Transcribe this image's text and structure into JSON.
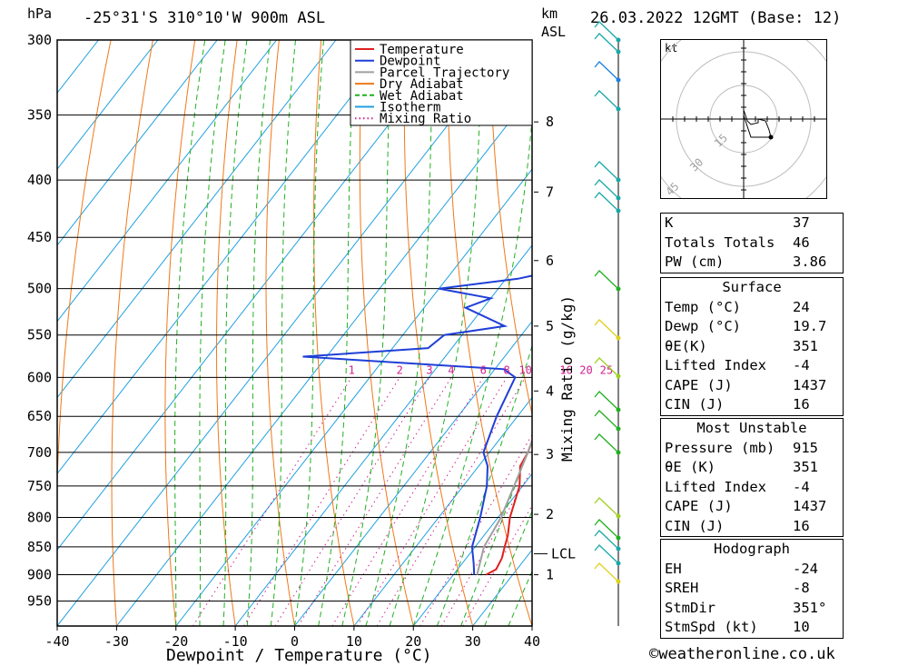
{
  "header": {
    "pressure_unit": "hPa",
    "location": "-25°31'S 310°10'W 900m ASL",
    "height_unit_1": "km",
    "height_unit_2": "ASL",
    "datetime": "26.03.2022 12GMT (Base: 12)"
  },
  "chart_data": {
    "type": "line",
    "xlabel": "Dewpoint / Temperature (°C)",
    "x_ticks": [
      -40,
      -30,
      -20,
      -10,
      0,
      10,
      20,
      30,
      40
    ],
    "y_ticks": [
      300,
      350,
      400,
      450,
      500,
      550,
      600,
      650,
      700,
      750,
      800,
      850,
      900,
      950
    ],
    "xlim": [
      -40,
      40
    ],
    "ylim": [
      1000,
      300
    ],
    "y_scale": "log",
    "legend": {
      "placement": "top-right",
      "entries": [
        {
          "name": "Temperature",
          "color": "#e02020",
          "style": "solid"
        },
        {
          "name": "Dewpoint",
          "color": "#1f3fd8",
          "style": "solid"
        },
        {
          "name": "Parcel Trajectory",
          "color": "#a0a0a0",
          "style": "solid"
        },
        {
          "name": "Dry Adiabat",
          "color": "#f07818",
          "style": "solid"
        },
        {
          "name": "Wet Adiabat",
          "color": "#20b020",
          "style": "dashed"
        },
        {
          "name": "Isotherm",
          "color": "#20a0e0",
          "style": "solid"
        },
        {
          "name": "Mixing Ratio",
          "color": "#d02090",
          "style": "dotted"
        }
      ]
    },
    "mixing_ratio_label": "Mixing Ratio (g/kg)",
    "mixing_ratio_values": [
      "1",
      "2",
      "3",
      "4",
      "6",
      "8",
      "10",
      "16",
      "20",
      "25"
    ],
    "height_ticks_km": [
      "1",
      "2",
      "3",
      "4",
      "5",
      "6",
      "7",
      "8"
    ],
    "lcl_label": "LCL",
    "series": [
      {
        "name": "Temperature",
        "points": [
          [
            900,
            25.5
          ],
          [
            890,
            26.5
          ],
          [
            870,
            26
          ],
          [
            850,
            25
          ],
          [
            830,
            24
          ],
          [
            800,
            22
          ],
          [
            750,
            19.5
          ],
          [
            720,
            17
          ],
          [
            700,
            16.5
          ],
          [
            650,
            14
          ],
          [
            600,
            10.5
          ],
          [
            550,
            8
          ],
          [
            500,
            5.5
          ],
          [
            450,
            2
          ],
          [
            420,
            0.5
          ],
          [
            400,
            -2.5
          ],
          [
            380,
            -5
          ],
          [
            350,
            -8.5
          ],
          [
            300,
            -15
          ]
        ]
      },
      {
        "name": "Dewpoint",
        "points": [
          [
            900,
            23.5
          ],
          [
            880,
            22
          ],
          [
            850,
            19.5
          ],
          [
            800,
            17
          ],
          [
            750,
            14
          ],
          [
            720,
            11.5
          ],
          [
            700,
            9
          ],
          [
            650,
            6.5
          ],
          [
            600,
            4.5
          ],
          [
            590,
            1.5
          ],
          [
            575,
            -34
          ],
          [
            565,
            -14
          ],
          [
            550,
            -13
          ],
          [
            540,
            -4
          ],
          [
            520,
            -13
          ],
          [
            510,
            -10
          ],
          [
            500,
            -20
          ],
          [
            490,
            -8
          ],
          [
            480,
            -1.5
          ],
          [
            450,
            -2
          ],
          [
            440,
            -7
          ],
          [
            430,
            -3
          ],
          [
            410,
            -5
          ],
          [
            410,
            -16
          ],
          [
            395,
            -10
          ],
          [
            385,
            -11
          ],
          [
            375,
            -16
          ],
          [
            370,
            -12
          ],
          [
            360,
            -10
          ],
          [
            340,
            -12
          ],
          [
            320,
            -19
          ],
          [
            300,
            -28
          ]
        ]
      },
      {
        "name": "Parcel Trajectory",
        "points": [
          [
            900,
            24
          ],
          [
            850,
            21.5
          ],
          [
            800,
            20.5
          ],
          [
            700,
            16.5
          ],
          [
            600,
            11
          ],
          [
            500,
            3
          ],
          [
            450,
            -2
          ],
          [
            400,
            -8
          ],
          [
            360,
            -14
          ]
        ]
      }
    ]
  },
  "hodograph": {
    "unit": "kt",
    "ring_labels": [
      "15",
      "30",
      "45"
    ],
    "trace": [
      [
        0,
        5
      ],
      [
        2,
        -1
      ],
      [
        4,
        -3
      ],
      [
        8,
        -2
      ],
      [
        8,
        0
      ],
      [
        12,
        -1
      ],
      [
        14,
        -6
      ],
      [
        15,
        -10
      ],
      [
        4,
        -10
      ],
      [
        0,
        2
      ]
    ]
  },
  "indices": [
    {
      "label": "K",
      "value": "37"
    },
    {
      "label": "Totals Totals",
      "value": "46"
    },
    {
      "label": "PW (cm)",
      "value": "3.86"
    }
  ],
  "surface": {
    "title": "Surface",
    "rows": [
      {
        "label": "Temp (°C)",
        "value": "24"
      },
      {
        "label": "Dewp (°C)",
        "value": "19.7"
      },
      {
        "label": "θE(K)",
        "value": "351"
      },
      {
        "label": "Lifted Index",
        "value": "-4"
      },
      {
        "label": "CAPE (J)",
        "value": "1437"
      },
      {
        "label": "CIN (J)",
        "value": "16"
      }
    ]
  },
  "most_unstable": {
    "title": "Most Unstable",
    "rows": [
      {
        "label": "Pressure (mb)",
        "value": "915"
      },
      {
        "label": "θE (K)",
        "value": "351"
      },
      {
        "label": "Lifted Index",
        "value": "-4"
      },
      {
        "label": "CAPE (J)",
        "value": "1437"
      },
      {
        "label": "CIN (J)",
        "value": "16"
      }
    ]
  },
  "hodograph_table": {
    "title": "Hodograph",
    "rows": [
      {
        "label": "EH",
        "value": "-24"
      },
      {
        "label": "SREH",
        "value": "-8"
      },
      {
        "label": "StmDir",
        "value": "351°"
      },
      {
        "label": "StmSpd (kt)",
        "value": "10"
      }
    ]
  },
  "footer": {
    "copyright": "©weatheronline.co.uk"
  }
}
